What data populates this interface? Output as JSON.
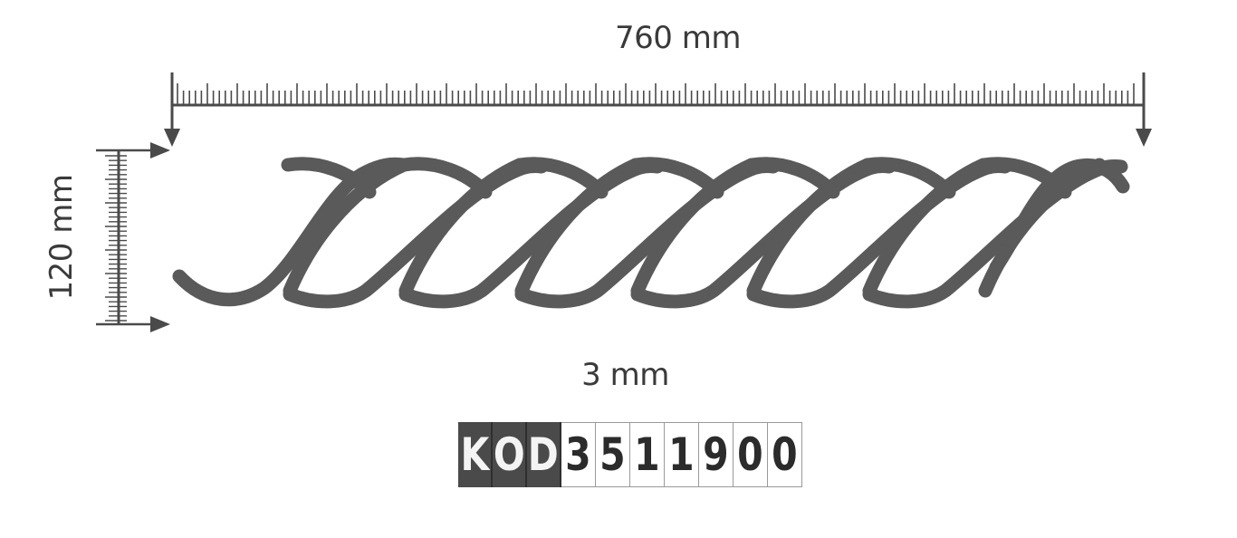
{
  "dimensions": {
    "width_label": "760 mm",
    "height_label": "120 mm",
    "thickness_label": "3 mm"
  },
  "code": {
    "prefix": [
      "K",
      "O",
      "D"
    ],
    "digits": [
      "3",
      "5",
      "1",
      "1",
      "9",
      "0",
      "0"
    ]
  },
  "colors": {
    "profile": "#5a5a5a",
    "ruler": "#4a4a4a",
    "code_dark": "#4a4a4a"
  }
}
